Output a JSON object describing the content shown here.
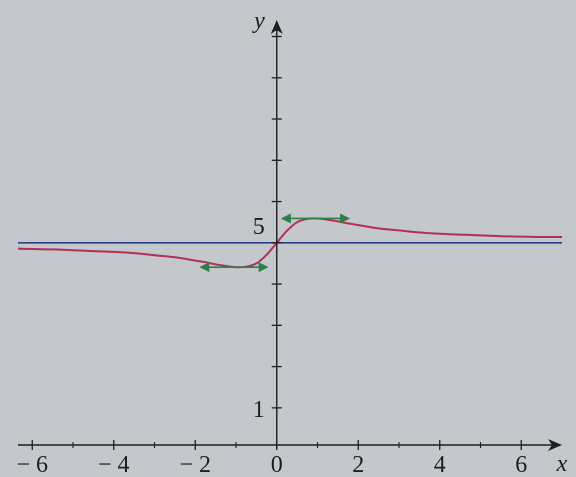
{
  "chart_data": {
    "type": "line",
    "xlabel": "x",
    "ylabel": "y",
    "xlim": [
      -6.35,
      7.0
    ],
    "ylim": [
      0.1,
      10.4
    ],
    "x_ticks": [
      -6,
      -4,
      -2,
      0,
      2,
      4,
      6
    ],
    "x_tick_labels": [
      "− 6",
      "− 4",
      "− 2",
      "0",
      "2",
      "4",
      "6"
    ],
    "x_minor_ticks": [
      -5,
      -3,
      -1,
      1,
      3,
      5
    ],
    "y_ticks": [
      1,
      2,
      3,
      4,
      5,
      6,
      7,
      8,
      9,
      10
    ],
    "y_tick_labels": {
      "1": "1",
      "5": "5"
    },
    "grid": false,
    "colors": {
      "background": "#c4c7cc",
      "axes": "#1e1e1e",
      "curve": "#b0305a",
      "asymptote": "#2b3f8c",
      "tangent": "#2e8048"
    },
    "series": [
      {
        "kind": "curve",
        "x": [
          -6.35,
          -6.0,
          -5.5,
          -5.0,
          -4.5,
          -4.0,
          -3.5,
          -3.0,
          -2.5,
          -2.0,
          -1.75,
          -1.5,
          -1.25,
          -1.0,
          -0.75,
          -0.5,
          -0.25,
          0.0,
          0.25,
          0.5,
          0.75,
          1.0,
          1.25,
          1.5,
          1.75,
          2.0,
          2.5,
          3.0,
          3.5,
          4.0,
          4.5,
          5.0,
          5.5,
          6.0,
          6.5,
          7.0
        ],
        "y": [
          4.86,
          4.85,
          4.84,
          4.82,
          4.8,
          4.78,
          4.75,
          4.7,
          4.65,
          4.57,
          4.53,
          4.48,
          4.44,
          4.41,
          4.42,
          4.5,
          4.71,
          5.0,
          5.29,
          5.5,
          5.58,
          5.59,
          5.56,
          5.52,
          5.47,
          5.43,
          5.35,
          5.3,
          5.25,
          5.22,
          5.2,
          5.18,
          5.16,
          5.15,
          5.14,
          5.14
        ]
      },
      {
        "kind": "asymptote",
        "x": [
          -6.35,
          7.0
        ],
        "y": [
          5.0,
          5.0
        ]
      }
    ],
    "tangents": [
      {
        "x": [
          -1.9,
          -0.2
        ],
        "y": [
          4.41,
          4.41
        ]
      },
      {
        "x": [
          0.1,
          1.8
        ],
        "y": [
          5.59,
          5.59
        ]
      }
    ]
  }
}
